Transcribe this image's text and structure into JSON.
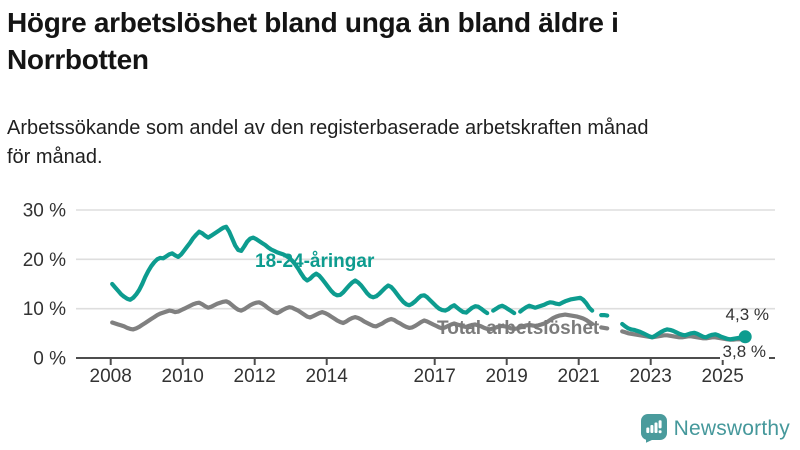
{
  "header": {
    "title": "Högre arbetslöshet bland unga än bland äldre i Norrbotten",
    "title_lines": [
      "Högre arbetslöshet bland unga än bland äldre i",
      "Norrbotten"
    ],
    "subtitle": "Arbetssökande som andel av den registerbaserade arbetskraften månad för månad.",
    "subtitle_lines": [
      "Arbetssökande som andel av den registerbaserade arbetskraften månad",
      "för månad."
    ]
  },
  "footer": {
    "brand": "Newsworthy",
    "brand_icon": "bar-chart-speech-bubble"
  },
  "colors": {
    "young_line": "#0d9c8f",
    "total_line": "#808080",
    "grid": "#dedede",
    "axis": "#4d4d4d",
    "tick_text": "#333333",
    "logo_teal": "#4a9b9c"
  },
  "chart_data": {
    "type": "line",
    "title": "Högre arbetslöshet bland unga än bland äldre i Norrbotten",
    "subtitle": "Arbetssökande som andel av den registerbaserade arbetskraften månad för månad.",
    "unit": "%",
    "x_description": "Monthly values, January 2008 - August 2025 (gaps where series breaks)",
    "x_start_year": 2008,
    "x_step_months": 1,
    "ylim": [
      0,
      30
    ],
    "grid": true,
    "legend_position": "inline-labels",
    "yticks": [
      {
        "value": 0,
        "label": "0 %"
      },
      {
        "value": 10,
        "label": "10 %"
      },
      {
        "value": 20,
        "label": "20 %"
      },
      {
        "value": 30,
        "label": "30 %"
      }
    ],
    "xticks": [
      {
        "value": 2008,
        "label": "2008"
      },
      {
        "value": 2010,
        "label": "2010"
      },
      {
        "value": 2012,
        "label": "2012"
      },
      {
        "value": 2014,
        "label": "2014"
      },
      {
        "value": 2017,
        "label": "2017"
      },
      {
        "value": 2019,
        "label": "2019"
      },
      {
        "value": 2021,
        "label": "2021"
      },
      {
        "value": 2023,
        "label": "2023"
      },
      {
        "value": 2025,
        "label": "2025"
      }
    ],
    "series": [
      {
        "name": "18-24-åringar",
        "color": "#0d9c8f",
        "end_label": "4,3 %",
        "end_value": 4.3,
        "end_dot": true,
        "values": [
          15.0,
          14.3,
          13.6,
          12.9,
          12.4,
          12.0,
          11.8,
          12.2,
          12.9,
          13.8,
          15.0,
          16.4,
          17.6,
          18.6,
          19.4,
          20.0,
          20.3,
          20.2,
          20.6,
          21.0,
          21.2,
          20.8,
          20.5,
          21.0,
          21.8,
          22.6,
          23.4,
          24.3,
          25.0,
          25.6,
          25.3,
          24.8,
          24.4,
          24.8,
          25.2,
          25.6,
          26.0,
          26.4,
          26.6,
          25.6,
          24.2,
          22.8,
          21.9,
          21.7,
          22.6,
          23.6,
          24.2,
          24.4,
          24.1,
          23.7,
          23.3,
          22.9,
          22.4,
          22.0,
          21.7,
          21.4,
          21.2,
          21.0,
          20.7,
          20.3,
          19.7,
          19.0,
          18.1,
          17.1,
          16.2,
          15.7,
          16.1,
          16.7,
          17.1,
          16.7,
          16.0,
          15.2,
          14.4,
          13.6,
          13.0,
          12.7,
          12.8,
          13.3,
          14.0,
          14.7,
          15.3,
          15.7,
          15.3,
          14.7,
          13.9,
          13.1,
          12.5,
          12.3,
          12.5,
          13.0,
          13.6,
          14.2,
          14.7,
          14.4,
          13.7,
          12.9,
          12.1,
          11.4,
          10.9,
          10.7,
          11.0,
          11.5,
          12.1,
          12.6,
          12.7,
          12.3,
          11.7,
          11.1,
          10.5,
          10.0,
          9.7,
          9.6,
          9.9,
          10.4,
          10.7,
          10.2,
          9.7,
          9.3,
          9.2,
          9.7,
          10.2,
          10.5,
          10.4,
          10.0,
          9.5,
          9.1,
          null,
          9.6,
          10.0,
          10.4,
          10.6,
          10.3,
          9.9,
          9.5,
          9.1,
          null,
          9.4,
          9.9,
          10.3,
          10.6,
          10.4,
          10.2,
          10.4,
          10.6,
          10.8,
          11.1,
          11.3,
          11.2,
          11.0,
          10.9,
          11.2,
          11.5,
          11.7,
          11.9,
          12.0,
          12.1,
          12.2,
          11.8,
          11.1,
          10.2,
          9.6,
          null,
          null,
          8.7,
          8.7,
          8.6,
          null,
          null,
          null,
          null,
          6.9,
          6.4,
          6.0,
          5.8,
          5.7,
          5.5,
          5.3,
          5.0,
          4.7,
          4.4,
          4.2,
          4.5,
          4.9,
          5.3,
          5.6,
          5.8,
          5.7,
          5.5,
          5.2,
          4.9,
          4.7,
          4.6,
          4.8,
          5.0,
          5.1,
          4.9,
          4.6,
          4.3,
          4.2,
          4.5,
          4.7,
          4.8,
          4.6,
          4.3,
          4.1,
          3.9,
          3.8,
          3.9,
          4.0,
          4.1,
          4.2,
          4.3
        ]
      },
      {
        "name": "Total arbetslöshet",
        "color": "#808080",
        "end_label": "3,8 %",
        "end_value": 3.8,
        "end_dot": false,
        "values": [
          7.2,
          7.0,
          6.8,
          6.6,
          6.4,
          6.1,
          5.9,
          5.8,
          6.0,
          6.3,
          6.7,
          7.1,
          7.5,
          7.9,
          8.3,
          8.7,
          9.0,
          9.2,
          9.4,
          9.6,
          9.5,
          9.3,
          9.4,
          9.7,
          10.0,
          10.3,
          10.6,
          10.9,
          11.1,
          11.2,
          10.9,
          10.5,
          10.2,
          10.4,
          10.7,
          11.0,
          11.2,
          11.4,
          11.5,
          11.2,
          10.7,
          10.2,
          9.8,
          9.6,
          9.9,
          10.3,
          10.7,
          11.0,
          11.2,
          11.3,
          11.0,
          10.6,
          10.1,
          9.7,
          9.3,
          9.1,
          9.4,
          9.8,
          10.1,
          10.3,
          10.2,
          9.9,
          9.6,
          9.2,
          8.8,
          8.4,
          8.2,
          8.5,
          8.8,
          9.1,
          9.3,
          9.1,
          8.8,
          8.4,
          8.0,
          7.6,
          7.3,
          7.1,
          7.4,
          7.8,
          8.1,
          8.3,
          8.1,
          7.8,
          7.4,
          7.1,
          6.8,
          6.5,
          6.4,
          6.7,
          7.0,
          7.4,
          7.7,
          7.9,
          7.7,
          7.3,
          7.0,
          6.6,
          6.3,
          6.1,
          6.2,
          6.5,
          6.9,
          7.3,
          7.6,
          7.4,
          7.1,
          6.8,
          6.5,
          6.2,
          6.0,
          6.2,
          6.5,
          6.8,
          7.0,
          6.8,
          6.6,
          6.4,
          6.3,
          6.5,
          6.7,
          6.8,
          6.6,
          6.4,
          6.1,
          5.9,
          5.8,
          6.0,
          6.2,
          6.4,
          6.5,
          6.4,
          6.2,
          6.0,
          5.9,
          6.0,
          6.2,
          6.4,
          6.6,
          6.7,
          6.6,
          6.5,
          6.6,
          6.8,
          7.0,
          7.3,
          7.7,
          8.1,
          8.4,
          8.6,
          8.7,
          8.8,
          8.7,
          8.6,
          8.5,
          8.4,
          8.2,
          8.0,
          7.7,
          7.3,
          6.9,
          null,
          null,
          6.2,
          6.1,
          6.0,
          null,
          null,
          null,
          null,
          5.4,
          5.2,
          5.0,
          4.9,
          4.8,
          4.7,
          4.6,
          4.5,
          4.4,
          4.3,
          4.2,
          4.3,
          4.4,
          4.5,
          4.6,
          4.6,
          4.5,
          4.4,
          4.3,
          4.2,
          4.2,
          4.3,
          4.4,
          4.4,
          4.3,
          4.2,
          4.1,
          4.0,
          4.0,
          4.1,
          4.2,
          4.2,
          4.1,
          4.0,
          3.9,
          3.8,
          3.7,
          3.7,
          3.8,
          3.8,
          3.8,
          3.8
        ]
      }
    ]
  }
}
